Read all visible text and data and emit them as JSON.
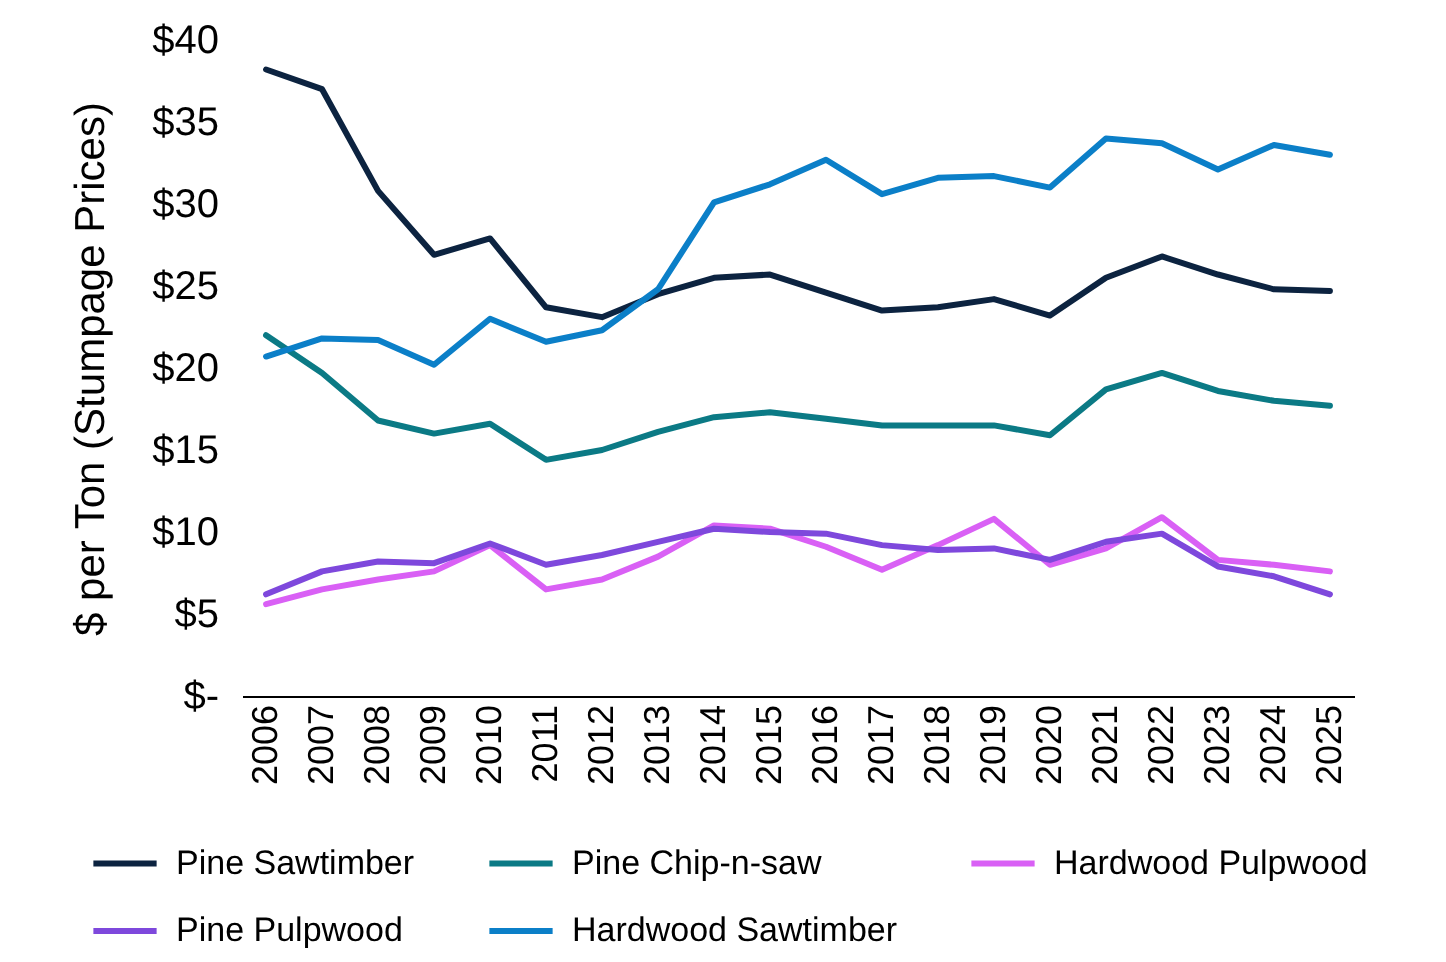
{
  "chart_data": {
    "type": "line",
    "ylabel": "$ per Ton (Stumpage Prices)",
    "categories": [
      "2006",
      "2007",
      "2008",
      "2009",
      "2010",
      "2011",
      "2012",
      "2013",
      "2014",
      "2015",
      "2016",
      "2017",
      "2018",
      "2019",
      "2020",
      "2021",
      "2022",
      "2023",
      "2024",
      "2025"
    ],
    "series": [
      {
        "name": "Pine Sawtimber",
        "color": "#0c2340",
        "values": [
          38.2,
          37.0,
          30.8,
          26.9,
          27.9,
          23.7,
          23.1,
          24.5,
          25.5,
          25.7,
          24.6,
          23.5,
          23.7,
          24.2,
          23.2,
          25.5,
          26.8,
          25.7,
          24.8,
          24.7
        ]
      },
      {
        "name": "Pine Chip-n-saw",
        "color": "#0b7a85",
        "values": [
          22.0,
          19.7,
          16.8,
          16.0,
          16.6,
          14.4,
          15.0,
          16.1,
          17.0,
          17.3,
          16.9,
          16.5,
          16.5,
          16.5,
          15.9,
          18.7,
          19.7,
          18.6,
          18.0,
          17.7
        ]
      },
      {
        "name": "Hardwood Pulpwood",
        "color": "#d960f5",
        "values": [
          5.6,
          6.5,
          7.1,
          7.6,
          9.2,
          6.5,
          7.1,
          8.5,
          10.4,
          10.2,
          9.1,
          7.7,
          9.2,
          10.8,
          8.0,
          9.0,
          10.9,
          8.3,
          8.0,
          7.6
        ]
      },
      {
        "name": "Pine Pulpwood",
        "color": "#7e48dc",
        "values": [
          6.2,
          7.6,
          8.2,
          8.1,
          9.3,
          8.0,
          8.6,
          9.4,
          10.2,
          10.0,
          9.9,
          9.2,
          8.9,
          9.0,
          8.3,
          9.4,
          9.9,
          7.9,
          7.3,
          6.2
        ]
      },
      {
        "name": "Hardwood Sawtimber",
        "color": "#0b7fc8",
        "values": [
          20.7,
          21.8,
          21.7,
          20.2,
          23.0,
          21.6,
          22.3,
          24.8,
          30.1,
          31.2,
          32.7,
          30.6,
          31.6,
          31.7,
          31.0,
          34.0,
          33.7,
          32.1,
          33.6,
          33.0
        ]
      }
    ],
    "ylim": [
      0,
      40
    ],
    "yticks": [
      {
        "value": 0,
        "label": "$-"
      },
      {
        "value": 5,
        "label": "$5"
      },
      {
        "value": 10,
        "label": "$10"
      },
      {
        "value": 15,
        "label": "$15"
      },
      {
        "value": 20,
        "label": "$20"
      },
      {
        "value": 25,
        "label": "$25"
      },
      {
        "value": 30,
        "label": "$30"
      },
      {
        "value": 35,
        "label": "$35"
      },
      {
        "value": 40,
        "label": "$40"
      }
    ],
    "grid": false,
    "legend": "bottom",
    "line_style": "solid"
  }
}
